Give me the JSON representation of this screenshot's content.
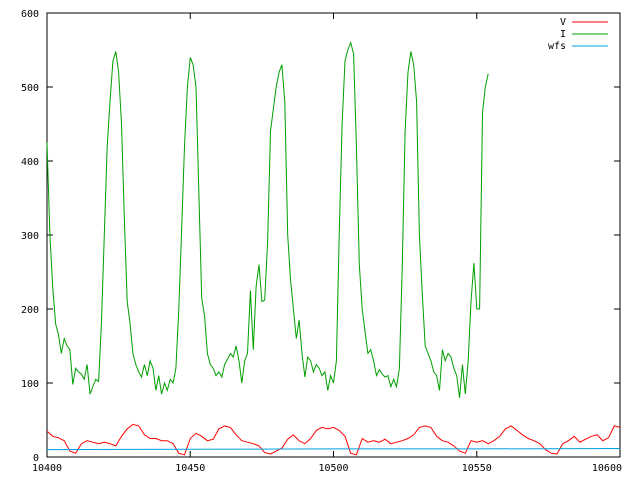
{
  "chart_data": {
    "type": "line",
    "title": "",
    "xlabel": "",
    "ylabel": "",
    "xlim": [
      10400,
      10600
    ],
    "ylim": [
      0,
      600
    ],
    "x_ticks": [
      "10400",
      "10450",
      "10500",
      "10550",
      "10600"
    ],
    "y_ticks": [
      "0",
      "100",
      "200",
      "300",
      "400",
      "500",
      "600"
    ],
    "grid": false,
    "legend_position": "top-right",
    "series": [
      {
        "name": "V",
        "color": "#ff0000",
        "points": [
          [
            10400,
            35
          ],
          [
            10402,
            28
          ],
          [
            10404,
            26
          ],
          [
            10406,
            22
          ],
          [
            10408,
            8
          ],
          [
            10410,
            5
          ],
          [
            10412,
            18
          ],
          [
            10414,
            22
          ],
          [
            10416,
            20
          ],
          [
            10418,
            18
          ],
          [
            10420,
            20
          ],
          [
            10422,
            18
          ],
          [
            10424,
            15
          ],
          [
            10426,
            28
          ],
          [
            10428,
            38
          ],
          [
            10430,
            44
          ],
          [
            10432,
            42
          ],
          [
            10434,
            30
          ],
          [
            10436,
            25
          ],
          [
            10438,
            25
          ],
          [
            10440,
            22
          ],
          [
            10442,
            22
          ],
          [
            10444,
            18
          ],
          [
            10446,
            5
          ],
          [
            10448,
            3
          ],
          [
            10450,
            25
          ],
          [
            10452,
            32
          ],
          [
            10454,
            28
          ],
          [
            10456,
            22
          ],
          [
            10458,
            24
          ],
          [
            10460,
            38
          ],
          [
            10462,
            42
          ],
          [
            10464,
            40
          ],
          [
            10466,
            30
          ],
          [
            10468,
            22
          ],
          [
            10470,
            20
          ],
          [
            10472,
            18
          ],
          [
            10474,
            15
          ],
          [
            10476,
            6
          ],
          [
            10478,
            4
          ],
          [
            10480,
            8
          ],
          [
            10482,
            12
          ],
          [
            10484,
            24
          ],
          [
            10486,
            30
          ],
          [
            10488,
            22
          ],
          [
            10490,
            18
          ],
          [
            10492,
            25
          ],
          [
            10494,
            36
          ],
          [
            10496,
            40
          ],
          [
            10498,
            38
          ],
          [
            10500,
            40
          ],
          [
            10502,
            36
          ],
          [
            10504,
            28
          ],
          [
            10506,
            5
          ],
          [
            10508,
            3
          ],
          [
            10510,
            25
          ],
          [
            10512,
            20
          ],
          [
            10514,
            22
          ],
          [
            10516,
            20
          ],
          [
            10518,
            24
          ],
          [
            10520,
            18
          ],
          [
            10522,
            20
          ],
          [
            10524,
            22
          ],
          [
            10526,
            25
          ],
          [
            10528,
            30
          ],
          [
            10530,
            40
          ],
          [
            10532,
            42
          ],
          [
            10534,
            40
          ],
          [
            10536,
            28
          ],
          [
            10538,
            22
          ],
          [
            10540,
            20
          ],
          [
            10542,
            15
          ],
          [
            10544,
            8
          ],
          [
            10546,
            5
          ],
          [
            10548,
            22
          ],
          [
            10550,
            20
          ],
          [
            10552,
            22
          ],
          [
            10554,
            18
          ],
          [
            10556,
            22
          ],
          [
            10558,
            28
          ],
          [
            10560,
            38
          ],
          [
            10562,
            42
          ],
          [
            10564,
            36
          ],
          [
            10566,
            30
          ],
          [
            10568,
            25
          ],
          [
            10570,
            22
          ],
          [
            10572,
            18
          ],
          [
            10574,
            10
          ],
          [
            10576,
            5
          ],
          [
            10578,
            4
          ],
          [
            10580,
            18
          ],
          [
            10582,
            22
          ],
          [
            10584,
            28
          ],
          [
            10586,
            20
          ],
          [
            10588,
            24
          ],
          [
            10590,
            28
          ],
          [
            10592,
            30
          ],
          [
            10594,
            22
          ],
          [
            10596,
            26
          ],
          [
            10598,
            42
          ],
          [
            10600,
            40
          ]
        ]
      },
      {
        "name": "I",
        "color": "#00a000",
        "points": [
          [
            10400,
            425
          ],
          [
            10401,
            300
          ],
          [
            10402,
            230
          ],
          [
            10403,
            180
          ],
          [
            10404,
            165
          ],
          [
            10405,
            140
          ],
          [
            10406,
            160
          ],
          [
            10407,
            150
          ],
          [
            10408,
            145
          ],
          [
            10409,
            98
          ],
          [
            10410,
            120
          ],
          [
            10411,
            115
          ],
          [
            10412,
            112
          ],
          [
            10413,
            105
          ],
          [
            10414,
            125
          ],
          [
            10415,
            85
          ],
          [
            10416,
            95
          ],
          [
            10417,
            105
          ],
          [
            10418,
            102
          ],
          [
            10419,
            180
          ],
          [
            10420,
            300
          ],
          [
            10421,
            420
          ],
          [
            10422,
            480
          ],
          [
            10423,
            535
          ],
          [
            10424,
            548
          ],
          [
            10425,
            520
          ],
          [
            10426,
            450
          ],
          [
            10427,
            320
          ],
          [
            10428,
            210
          ],
          [
            10429,
            180
          ],
          [
            10430,
            140
          ],
          [
            10431,
            125
          ],
          [
            10432,
            115
          ],
          [
            10433,
            108
          ],
          [
            10434,
            125
          ],
          [
            10435,
            110
          ],
          [
            10436,
            130
          ],
          [
            10437,
            120
          ],
          [
            10438,
            90
          ],
          [
            10439,
            110
          ],
          [
            10440,
            85
          ],
          [
            10441,
            100
          ],
          [
            10442,
            90
          ],
          [
            10443,
            105
          ],
          [
            10444,
            100
          ],
          [
            10445,
            120
          ],
          [
            10446,
            200
          ],
          [
            10447,
            310
          ],
          [
            10448,
            420
          ],
          [
            10449,
            500
          ],
          [
            10450,
            540
          ],
          [
            10451,
            530
          ],
          [
            10452,
            500
          ],
          [
            10453,
            360
          ],
          [
            10454,
            215
          ],
          [
            10455,
            190
          ],
          [
            10456,
            140
          ],
          [
            10457,
            125
          ],
          [
            10458,
            120
          ],
          [
            10459,
            110
          ],
          [
            10460,
            115
          ],
          [
            10461,
            108
          ],
          [
            10462,
            125
          ],
          [
            10463,
            132
          ],
          [
            10464,
            140
          ],
          [
            10465,
            135
          ],
          [
            10466,
            150
          ],
          [
            10467,
            130
          ],
          [
            10468,
            100
          ],
          [
            10469,
            130
          ],
          [
            10470,
            140
          ],
          [
            10471,
            225
          ],
          [
            10472,
            145
          ],
          [
            10473,
            230
          ],
          [
            10474,
            260
          ],
          [
            10475,
            210
          ],
          [
            10476,
            212
          ],
          [
            10477,
            290
          ],
          [
            10478,
            440
          ],
          [
            10479,
            470
          ],
          [
            10480,
            500
          ],
          [
            10481,
            520
          ],
          [
            10482,
            530
          ],
          [
            10483,
            480
          ],
          [
            10484,
            300
          ],
          [
            10485,
            240
          ],
          [
            10486,
            200
          ],
          [
            10487,
            160
          ],
          [
            10488,
            185
          ],
          [
            10489,
            140
          ],
          [
            10490,
            108
          ],
          [
            10491,
            135
          ],
          [
            10492,
            130
          ],
          [
            10493,
            115
          ],
          [
            10494,
            125
          ],
          [
            10495,
            120
          ],
          [
            10496,
            110
          ],
          [
            10497,
            115
          ],
          [
            10498,
            90
          ],
          [
            10499,
            110
          ],
          [
            10500,
            100
          ],
          [
            10501,
            130
          ],
          [
            10502,
            300
          ],
          [
            10503,
            450
          ],
          [
            10504,
            535
          ],
          [
            10505,
            550
          ],
          [
            10506,
            560
          ],
          [
            10507,
            545
          ],
          [
            10508,
            420
          ],
          [
            10509,
            260
          ],
          [
            10510,
            200
          ],
          [
            10511,
            170
          ],
          [
            10512,
            140
          ],
          [
            10513,
            145
          ],
          [
            10514,
            130
          ],
          [
            10515,
            110
          ],
          [
            10516,
            118
          ],
          [
            10517,
            112
          ],
          [
            10518,
            108
          ],
          [
            10519,
            110
          ],
          [
            10520,
            95
          ],
          [
            10521,
            105
          ],
          [
            10522,
            95
          ],
          [
            10523,
            120
          ],
          [
            10524,
            260
          ],
          [
            10525,
            440
          ],
          [
            10526,
            520
          ],
          [
            10527,
            548
          ],
          [
            10528,
            530
          ],
          [
            10529,
            480
          ],
          [
            10530,
            300
          ],
          [
            10531,
            220
          ],
          [
            10532,
            150
          ],
          [
            10533,
            140
          ],
          [
            10534,
            130
          ],
          [
            10535,
            115
          ],
          [
            10536,
            110
          ],
          [
            10537,
            90
          ],
          [
            10538,
            145
          ],
          [
            10539,
            130
          ],
          [
            10540,
            140
          ],
          [
            10541,
            135
          ],
          [
            10542,
            120
          ],
          [
            10543,
            110
          ],
          [
            10544,
            80
          ],
          [
            10545,
            125
          ],
          [
            10546,
            85
          ],
          [
            10547,
            130
          ],
          [
            10548,
            210
          ],
          [
            10549,
            262
          ],
          [
            10550,
            200
          ],
          [
            10551,
            200
          ],
          [
            10552,
            465
          ],
          [
            10553,
            500
          ],
          [
            10554,
            518
          ]
        ]
      },
      {
        "name": "wfs",
        "color": "#00a0e0",
        "points": [
          [
            10400,
            10
          ],
          [
            10450,
            10.5
          ],
          [
            10500,
            11
          ],
          [
            10550,
            11
          ],
          [
            10600,
            11.5
          ]
        ]
      }
    ]
  }
}
